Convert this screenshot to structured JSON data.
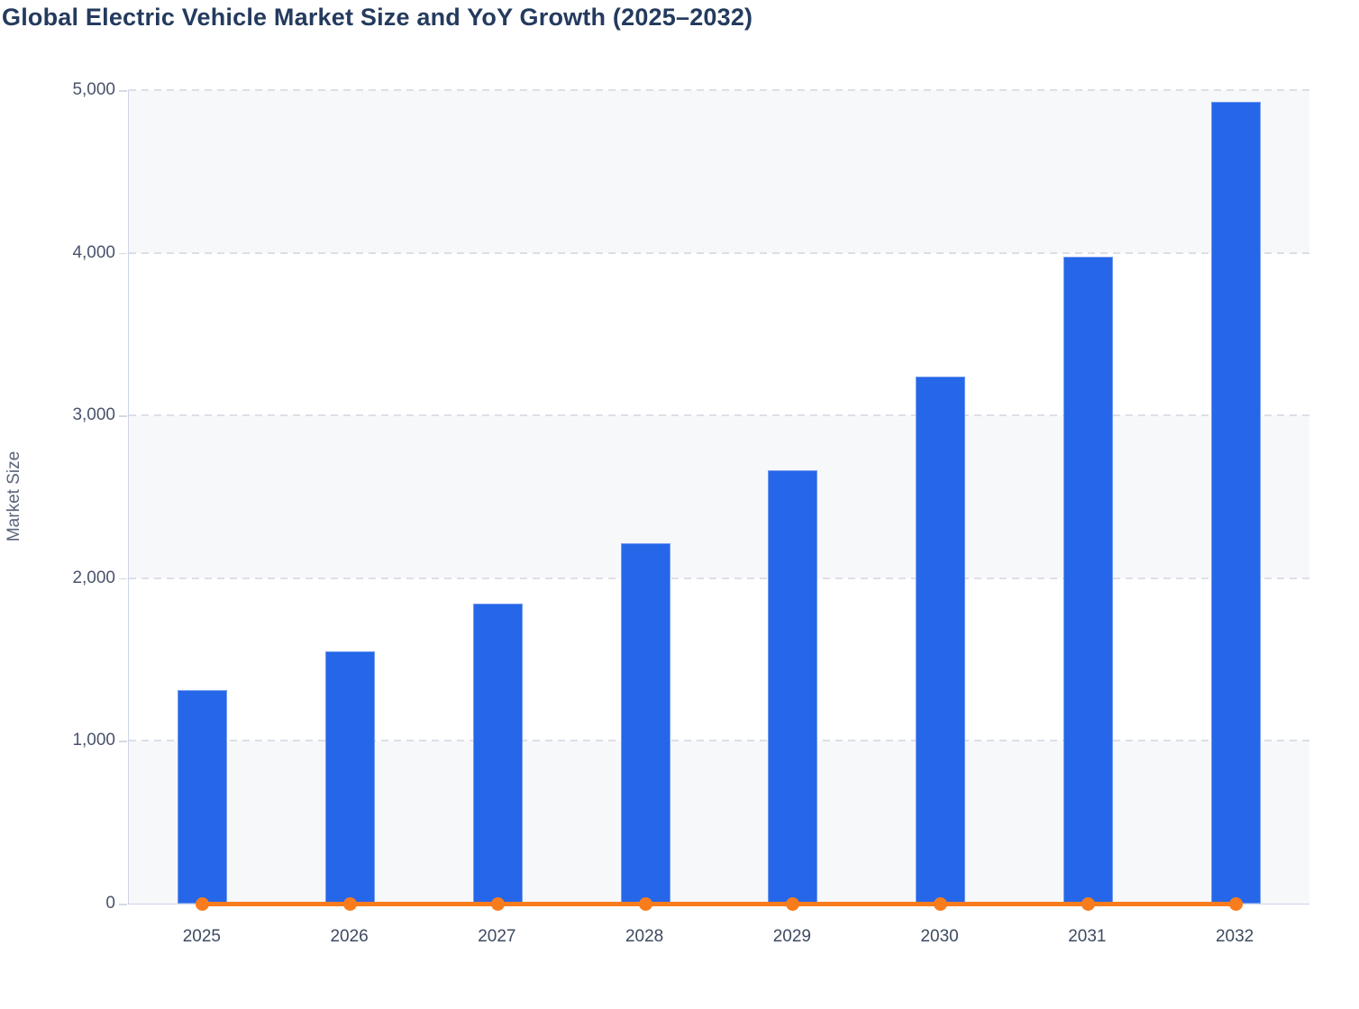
{
  "chart_data": {
    "type": "bar",
    "title": "Global Electric Vehicle Market Size and YoY Growth (2025–2032)",
    "xlabel": "",
    "ylabel": "Market Size",
    "categories": [
      "2025",
      "2026",
      "2027",
      "2028",
      "2029",
      "2030",
      "2031",
      "2032"
    ],
    "series": [
      {
        "name": "Market Size",
        "type": "bar",
        "color": "#2666e8",
        "values": [
          1310,
          1550,
          1845,
          2215,
          2665,
          3240,
          3975,
          4930
        ]
      },
      {
        "name": "YoY Growth",
        "type": "line",
        "color": "#f97c1c",
        "values": [
          0,
          0,
          0,
          0,
          0,
          0,
          0,
          0
        ],
        "note": "flat orange line with circular markers rendered at ~0 on the Market Size axis; exact growth percentages are not legible in the image"
      }
    ],
    "ylim": [
      0,
      5000
    ],
    "y_ticks": [
      "0",
      "1,000",
      "2,000",
      "3,000",
      "4,000",
      "5,000"
    ],
    "grid": "horizontal dashed gridlines every 1,000",
    "legend_position": "none",
    "plot_bands": "alternating horizontal bands every 1,000 units starting gray at 0–1,000"
  },
  "colors": {
    "bar_fill": "#2666e8",
    "line_orange": "#f97c1c",
    "band_gray": "#f7f8fa",
    "band_white": "#ffffff",
    "axis_line": "#cdd4e8",
    "grid_dash": "#dddfe7",
    "title_text": "#243b5e",
    "tick_text": "#49536b"
  }
}
